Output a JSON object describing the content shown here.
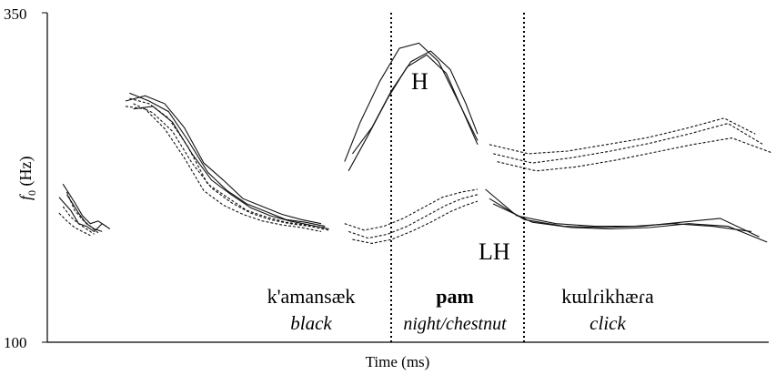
{
  "chart_data": {
    "type": "line",
    "xlabel": "Time (ms)",
    "ylabel_main": "f",
    "ylabel_sub": "0",
    "ylabel_unit": " (Hz)",
    "ylim": [
      100,
      350
    ],
    "yticks": [
      "350",
      "100"
    ],
    "grid": false,
    "annotations": {
      "high_tone": "H",
      "low_high_tone": "LH"
    },
    "words": [
      {
        "word": "k'amansæk",
        "gloss": "black"
      },
      {
        "word": "pam",
        "gloss": "night/chestnut"
      },
      {
        "word": "kɯlɾikhæɾa",
        "gloss": "click"
      }
    ],
    "series": [
      {
        "style": "solid",
        "segments": [
          {
            "x": [
              0.03,
              0.06,
              0.08,
              0.1,
              0.12,
              0.14,
              0.16
            ],
            "y": [
              210,
              200,
              190,
              188,
              184,
              190,
              186
            ]
          },
          {
            "x": [
              0.2,
              0.25,
              0.3,
              0.35,
              0.4,
              0.45,
              0.5,
              0.55,
              0.6,
              0.65,
              0.7
            ],
            "y": [
              283,
              287,
              281,
              263,
              236,
              223,
              209,
              203,
              197,
              193,
              190
            ]
          },
          {
            "x": [
              0.76,
              0.8,
              0.85,
              0.9,
              0.95,
              1.0,
              1.05,
              1.1
            ],
            "y": [
              237,
              267,
              298,
              323,
              327,
              313,
              283,
              253
            ]
          },
          {
            "x": [
              1.12,
              1.2,
              1.3,
              1.4,
              1.5,
              1.6,
              1.7,
              1.8
            ],
            "y": [
              216,
              196,
              190,
              188,
              188,
              190,
              188,
              184
            ]
          }
        ]
      },
      {
        "style": "solid",
        "segments": [
          {
            "x": [
              0.04,
              0.07,
              0.09,
              0.11,
              0.13,
              0.15
            ],
            "y": [
              220,
              206,
              196,
              190,
              192,
              188
            ]
          },
          {
            "x": [
              0.21,
              0.26,
              0.31,
              0.36,
              0.41,
              0.46,
              0.51,
              0.56,
              0.61,
              0.66,
              0.71
            ],
            "y": [
              289,
              283,
              275,
              253,
              229,
              215,
              205,
              199,
              193,
              191,
              188
            ]
          },
          {
            "x": [
              0.77,
              0.82,
              0.87,
              0.92,
              0.97,
              1.02,
              1.06,
              1.1
            ],
            "y": [
              230,
              257,
              285,
              309,
              318,
              304,
              277,
              250
            ]
          },
          {
            "x": [
              1.13,
              1.22,
              1.32,
              1.42,
              1.52,
              1.62,
              1.72,
              1.82
            ],
            "y": [
              209,
              193,
              188,
              187,
              188,
              191,
              194,
              180
            ]
          }
        ]
      },
      {
        "style": "solid",
        "segments": [
          {
            "x": [
              0.05,
              0.08,
              0.1,
              0.12,
              0.14
            ],
            "y": [
              212,
              198,
              190,
              186,
              184
            ]
          },
          {
            "x": [
              0.22,
              0.27,
              0.32,
              0.37,
              0.42,
              0.47,
              0.52,
              0.57,
              0.62,
              0.67,
              0.72
            ],
            "y": [
              277,
              279,
              267,
              243,
              223,
              212,
              202,
              196,
              192,
              189,
              186
            ]
          },
          {
            "x": [
              0.78,
              0.83,
              0.88,
              0.93,
              0.98,
              1.03,
              1.07,
              1.1
            ],
            "y": [
              243,
              263,
              291,
              313,
              321,
              307,
              281,
              258
            ]
          },
          {
            "x": [
              1.14,
              1.24,
              1.34,
              1.44,
              1.54,
              1.64,
              1.74,
              1.84
            ],
            "y": [
              205,
              191,
              187,
              186,
              187,
              190,
              188,
              176
            ]
          }
        ]
      },
      {
        "style": "dashed",
        "segments": [
          {
            "x": [
              0.04,
              0.06,
              0.08,
              0.1,
              0.12
            ],
            "y": [
              203,
              195,
              190,
              186,
              182
            ]
          },
          {
            "x": [
              0.21,
              0.26,
              0.31,
              0.36,
              0.41,
              0.46,
              0.51,
              0.56,
              0.61,
              0.66,
              0.71
            ],
            "y": [
              285,
              281,
              270,
              248,
              220,
              210,
              200,
              195,
              191,
              189,
              187
            ]
          },
          {
            "x": [
              0.76,
              0.81,
              0.86,
              0.91,
              0.96,
              1.01,
              1.06,
              1.1
            ],
            "y": [
              190,
              185,
              188,
              194,
              202,
              210,
              214,
              216
            ]
          },
          {
            "x": [
              1.13,
              1.23,
              1.33,
              1.43,
              1.53,
              1.63,
              1.73,
              1.81
            ],
            "y": [
              250,
              243,
              245,
              250,
              255,
              262,
              270,
              258
            ]
          }
        ]
      },
      {
        "style": "dashed",
        "segments": [
          {
            "x": [
              0.05,
              0.07,
              0.09,
              0.11,
              0.13
            ],
            "y": [
              214,
              200,
              193,
              188,
              183
            ]
          },
          {
            "x": [
              0.22,
              0.27,
              0.32,
              0.37,
              0.42,
              0.47,
              0.52,
              0.57,
              0.62,
              0.67,
              0.72
            ],
            "y": [
              281,
              274,
              260,
              236,
              217,
              206,
              198,
              193,
              190,
              188,
              185
            ]
          },
          {
            "x": [
              0.77,
              0.82,
              0.87,
              0.92,
              0.97,
              1.02,
              1.06,
              1.1
            ],
            "y": [
              184,
              179,
              182,
              188,
              196,
              204,
              209,
              212
            ]
          },
          {
            "x": [
              1.14,
              1.24,
              1.34,
              1.44,
              1.54,
              1.64,
              1.74,
              1.83
            ],
            "y": [
              243,
              236,
              240,
              245,
              251,
              258,
              266,
              250
            ]
          }
        ]
      },
      {
        "style": "dashed",
        "segments": [
          {
            "x": [
              0.03,
              0.05,
              0.07,
              0.09,
              0.11
            ],
            "y": [
              198,
              192,
              187,
              184,
              181
            ]
          },
          {
            "x": [
              0.2,
              0.25,
              0.3,
              0.35,
              0.4,
              0.45,
              0.5,
              0.55,
              0.6,
              0.65,
              0.7
            ],
            "y": [
              279,
              277,
              262,
              240,
              215,
              204,
              197,
              192,
              189,
              187,
              184
            ]
          },
          {
            "x": [
              0.78,
              0.83,
              0.88,
              0.93,
              0.98,
              1.03,
              1.07,
              1.1
            ],
            "y": [
              178,
              175,
              178,
              184,
              191,
              199,
              204,
              207
            ]
          },
          {
            "x": [
              1.15,
              1.25,
              1.35,
              1.45,
              1.55,
              1.65,
              1.75,
              1.85
            ],
            "y": [
              237,
              230,
              233,
              238,
              244,
              250,
              255,
              244
            ]
          }
        ]
      }
    ]
  }
}
